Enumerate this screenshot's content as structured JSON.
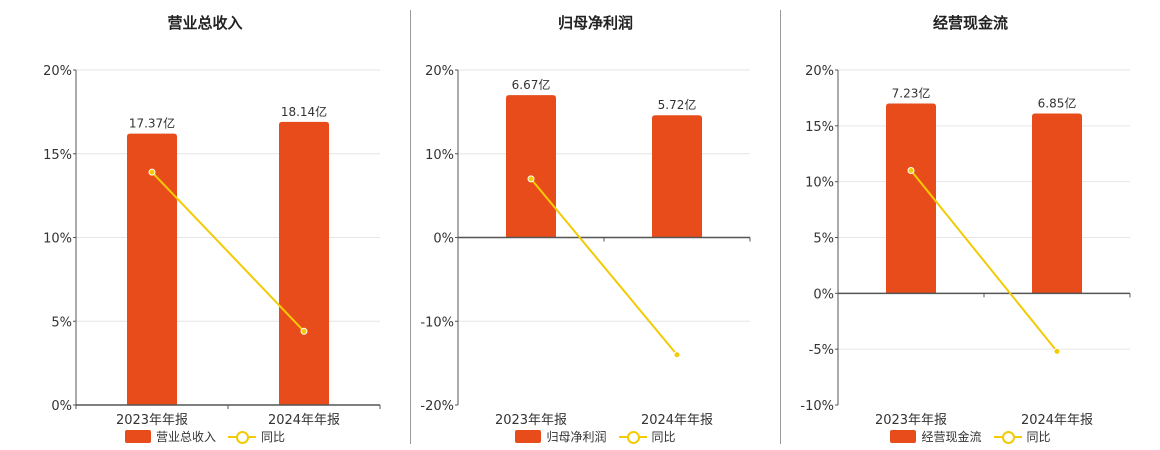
{
  "colors": {
    "bar": "#e84c1b",
    "line": "#f2cb05",
    "grid": "#e6e6e6",
    "axis": "#555555"
  },
  "chart_data": [
    {
      "type": "bar",
      "title": "营业总收入",
      "categories": [
        "2023年年报",
        "2024年年报"
      ],
      "bar_labels": [
        "17.37亿",
        "18.14亿"
      ],
      "bar_values": [
        16.2,
        16.9
      ],
      "series": [
        {
          "name": "营业总收入",
          "type": "bar",
          "values": [
            17.37,
            18.14
          ]
        },
        {
          "name": "同比",
          "type": "line",
          "values": [
            13.9,
            4.4
          ]
        }
      ],
      "y_ticks": [
        "0%",
        "5%",
        "10%",
        "15%",
        "20%"
      ],
      "ylim": [
        0,
        20
      ],
      "legend": [
        "营业总收入",
        "同比"
      ],
      "legend_position": "bottom",
      "grid": true
    },
    {
      "type": "bar",
      "title": "归母净利润",
      "categories": [
        "2023年年报",
        "2024年年报"
      ],
      "bar_labels": [
        "6.67亿",
        "5.72亿"
      ],
      "bar_values": [
        17.0,
        14.6
      ],
      "series": [
        {
          "name": "归母净利润",
          "type": "bar",
          "values": [
            6.67,
            5.72
          ]
        },
        {
          "name": "同比",
          "type": "line",
          "values": [
            7.0,
            -14.0
          ]
        }
      ],
      "y_ticks": [
        "-20%",
        "-10%",
        "0%",
        "10%",
        "20%"
      ],
      "ylim": [
        -20,
        20
      ],
      "legend": [
        "归母净利润",
        "同比"
      ],
      "legend_position": "bottom",
      "grid": true
    },
    {
      "type": "bar",
      "title": "经营现金流",
      "categories": [
        "2023年年报",
        "2024年年报"
      ],
      "bar_labels": [
        "7.23亿",
        "6.85亿"
      ],
      "bar_values": [
        17.0,
        16.1
      ],
      "series": [
        {
          "name": "经营现金流",
          "type": "bar",
          "values": [
            7.23,
            6.85
          ]
        },
        {
          "name": "同比",
          "type": "line",
          "values": [
            11.0,
            -5.2
          ]
        }
      ],
      "y_ticks": [
        "-10%",
        "-5%",
        "0%",
        "5%",
        "10%",
        "15%",
        "20%"
      ],
      "ylim": [
        -10,
        20
      ],
      "legend": [
        "经营现金流",
        "同比"
      ],
      "legend_position": "bottom",
      "grid": true
    }
  ]
}
